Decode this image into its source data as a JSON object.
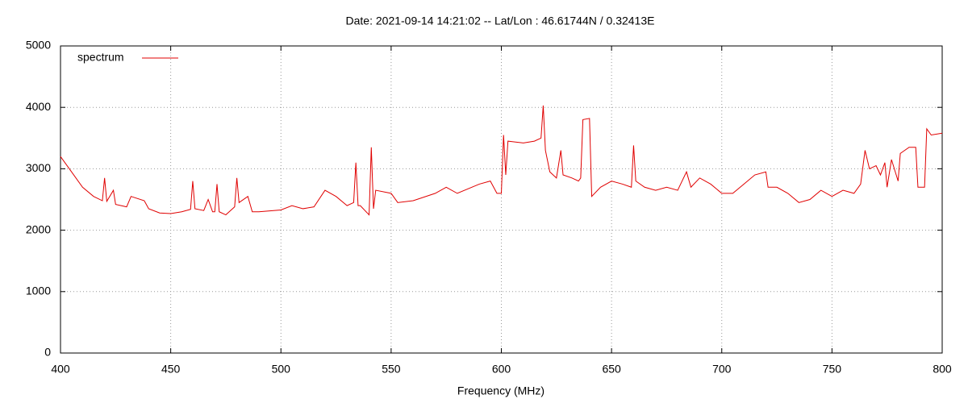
{
  "chart_data": {
    "type": "line",
    "title": "Date: 2021-09-14 14:21:02  --  Lat/Lon : 46.61744N / 0.32413E",
    "x_label": "Frequency (MHz)",
    "xlim": [
      400,
      800
    ],
    "xticks": [
      400,
      450,
      500,
      550,
      600,
      650,
      700,
      750,
      800
    ],
    "ylim": [
      0,
      5000
    ],
    "yticks": [
      0,
      1000,
      2000,
      3000,
      4000,
      5000
    ],
    "grid": true,
    "legend": "top-left",
    "x": [
      400,
      405,
      410,
      415,
      419,
      420,
      421,
      424,
      425,
      430,
      432,
      438,
      440,
      445,
      450,
      455,
      459,
      460,
      461,
      465,
      467,
      469,
      470,
      471,
      472,
      475,
      479,
      480,
      481,
      485,
      487,
      490,
      500,
      505,
      510,
      515,
      520,
      525,
      530,
      533,
      534,
      535,
      536,
      540,
      541,
      542,
      543,
      550,
      553,
      560,
      570,
      575,
      580,
      590,
      595,
      598,
      600,
      601,
      602,
      603,
      610,
      615,
      618,
      619,
      620,
      622,
      625,
      627,
      628,
      632,
      635,
      636,
      637,
      640,
      641,
      645,
      650,
      655,
      659,
      660,
      661,
      665,
      670,
      675,
      680,
      684,
      686,
      690,
      695,
      700,
      705,
      710,
      715,
      720,
      721,
      725,
      730,
      735,
      740,
      745,
      750,
      755,
      760,
      763,
      765,
      767,
      770,
      772,
      774,
      775,
      777,
      780,
      781,
      785,
      788,
      789,
      792,
      793,
      795,
      800
    ],
    "series": [
      {
        "name": "spectrum",
        "color": "#e00000",
        "values": [
          3200,
          2950,
          2700,
          2550,
          2480,
          2850,
          2470,
          2650,
          2420,
          2380,
          2550,
          2480,
          2350,
          2280,
          2270,
          2300,
          2340,
          2800,
          2350,
          2320,
          2500,
          2300,
          2300,
          2750,
          2300,
          2250,
          2380,
          2850,
          2450,
          2550,
          2300,
          2300,
          2330,
          2400,
          2350,
          2380,
          2650,
          2550,
          2400,
          2450,
          3100,
          2400,
          2400,
          2250,
          3350,
          2350,
          2650,
          2600,
          2450,
          2480,
          2600,
          2700,
          2600,
          2750,
          2800,
          2600,
          2600,
          3550,
          2900,
          3450,
          3420,
          3450,
          3500,
          4030,
          3300,
          2950,
          2850,
          3300,
          2900,
          2850,
          2800,
          2850,
          3800,
          3820,
          2550,
          2700,
          2800,
          2750,
          2700,
          3380,
          2800,
          2700,
          2650,
          2700,
          2650,
          2950,
          2700,
          2850,
          2750,
          2600,
          2600,
          2750,
          2900,
          2950,
          2700,
          2700,
          2600,
          2450,
          2500,
          2650,
          2550,
          2650,
          2600,
          2750,
          3300,
          3000,
          3050,
          2900,
          3100,
          2700,
          3150,
          2800,
          3250,
          3350,
          3350,
          2700,
          2700,
          3650,
          3550,
          3580
        ]
      }
    ]
  }
}
